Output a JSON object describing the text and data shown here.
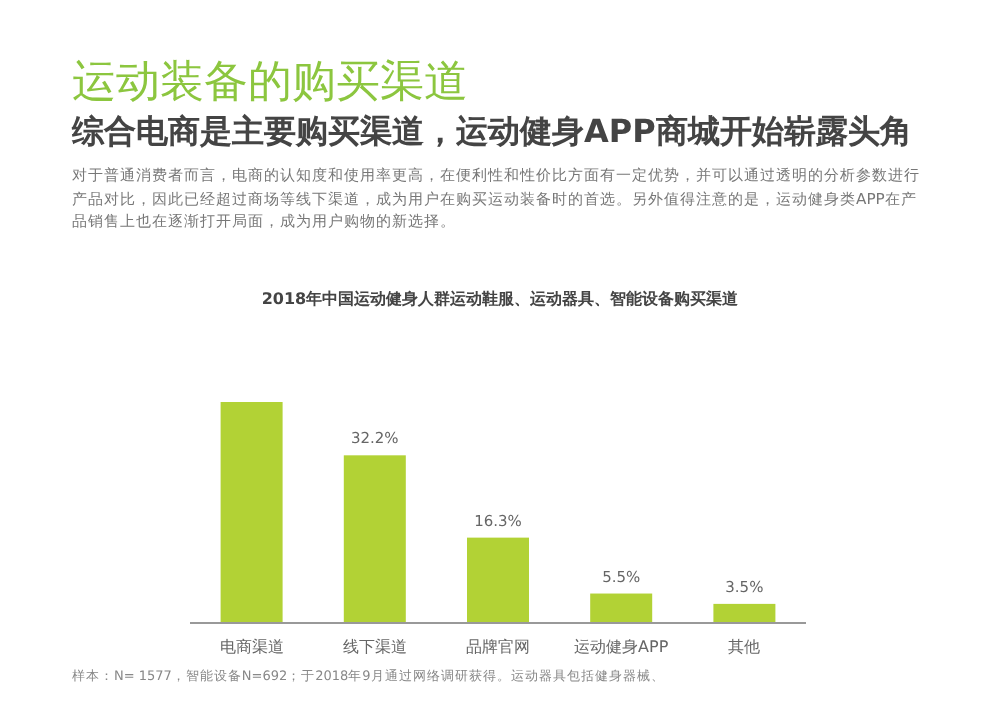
{
  "chart_data": {
    "type": "bar",
    "title": "运动装备的购买渠道",
    "subtitle": "综合电商是主要购买渠道，运动健身APP商城开始崭露头角",
    "annotations": [
      "对于普通消费者而言，电商的认知度和使用率更高，在便利性和性价比方面有一定优势，并可以通过透明的分析参数进行产品对比，因此已经超过商场等线下渠道，成为用户在购买运动装备时的首选。另外值得注意的是，运动健身类APP在产品销售上也在逐渐打开局面，成为用户购物的新选择。",
      "2018年中国运动健身人群运动鞋服、运动器具、智能设备购买渠道",
      "样本：N= 1577，智能设备N=692；于2018年9月通过网络调研获得。运动器具包括健身器械、"
    ],
    "categories": [
      "电商渠道",
      "线下渠道",
      "品牌官网",
      "运动健身APP",
      "其他"
    ],
    "values": [
      42.5,
      32.2,
      16.3,
      5.5,
      3.5
    ],
    "value_labels": [
      null,
      "32.2%",
      "16.3%",
      "5.5%",
      "3.5%"
    ],
    "color": "#b2d235"
  }
}
